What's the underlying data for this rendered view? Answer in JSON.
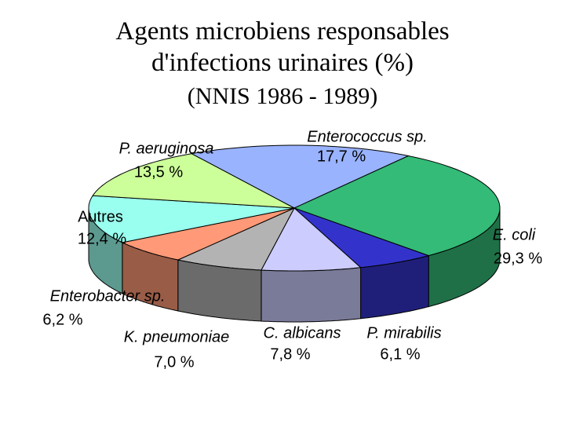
{
  "chart_data": {
    "type": "pie",
    "title": "Agents microbiens responsables d'infections urinaires (%)",
    "subtitle": "(NNIS 1986 - 1989)",
    "categories": [
      "Enterococcus sp.",
      "E. coli",
      "P. mirabilis",
      "C. albicans",
      "K. pneumoniae",
      "Enterobacter sp.",
      "Autres",
      "P. aeruginosa"
    ],
    "values": [
      17.7,
      29.3,
      6.1,
      7.8,
      7.0,
      6.2,
      12.4,
      13.5
    ],
    "value_labels": [
      "17,7 %",
      "29,3 %",
      "6,1 %",
      "7,8 %",
      "7,0 %",
      "6,2 %",
      "12,4 %",
      "13,5 %"
    ],
    "colors": [
      "#99b3ff",
      "#33bb77",
      "#3333cc",
      "#ccccff",
      "#b3b3b3",
      "#ff9977",
      "#99ffee",
      "#ccff99"
    ]
  }
}
